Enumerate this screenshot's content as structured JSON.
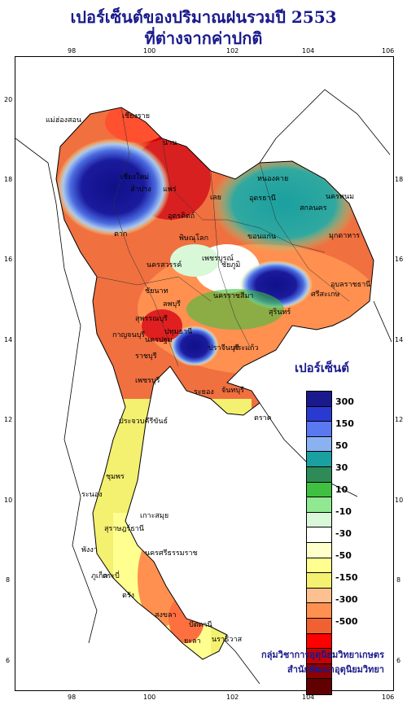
{
  "title_line1": "เปอร์เซ็นต์ของปริมาณฝนรวมปี 2553",
  "title_line2": "ที่ต่างจากค่าปกติ",
  "legend": {
    "title": "เปอร์เซ็นต์",
    "labels": [
      "300",
      "150",
      "50",
      "30",
      "10",
      "-10",
      "-30",
      "-50",
      "-150",
      "-300",
      "-500"
    ],
    "colors": [
      "#1a1a8c",
      "#2a3ad0",
      "#5a78f0",
      "#8ab2f2",
      "#1aa0a0",
      "#2e8b57",
      "#40c040",
      "#90e890",
      "#d8f8d8",
      "#ffffff",
      "#ffffcc",
      "#ffff90",
      "#f4f070",
      "#ffc090",
      "#ff9050",
      "#f06030",
      "#ff0000",
      "#c80000",
      "#900000",
      "#600000"
    ]
  },
  "axes": {
    "x_ticks": [
      "98",
      "100",
      "102",
      "104",
      "106"
    ],
    "y_ticks": [
      "20",
      "18",
      "16",
      "14",
      "12",
      "10",
      "8",
      "6"
    ]
  },
  "places": [
    "เชียงใหม่",
    "เชียงราย",
    "น่าน",
    "ลำปาง",
    "แม่ฮ่องสอน",
    "แพร่",
    "อุตรดิตถ์",
    "ตาก",
    "พิษณุโลก",
    "เลย",
    "หนองคาย",
    "อุดรธานี",
    "สกลนคร",
    "นครพนม",
    "มุกดาหาร",
    "ขอนแก่น",
    "ชัยภูมิ",
    "นครราชสีมา",
    "อุบลราชธานี",
    "สุรินทร์",
    "ศรีสะเกษ",
    "กาญจนบุรี",
    "ราชบุรี",
    "สุพรรณบุรี",
    "ลพบุรี",
    "ชัยนาท",
    "เพชรบุรี",
    "ระยอง",
    "จันทบุรี",
    "ประจวบคีรีขันธ์",
    "ชุมพร",
    "ระนอง",
    "สุราษฎร์ธานี",
    "นครศรีธรรมราช",
    "ภูเก็ต",
    "พังงา",
    "กระบี่",
    "ตรัง",
    "สงขลา",
    "ปัตตานี",
    "นราธิวาส",
    "ยะลา",
    "เกาะสมุย",
    "ปราจีนบุรี",
    "สระแก้ว",
    "นครสวรรค์",
    "เพชรบูรณ์",
    "ตราด",
    "ปทุมธานี",
    "นครปฐม"
  ],
  "credit": {
    "line1": "กลุ่มวิชาการอุตุนิยมวิทยาเกษตร",
    "line2": "สำนักพัฒนาอุตุนิยมวิทยา"
  }
}
